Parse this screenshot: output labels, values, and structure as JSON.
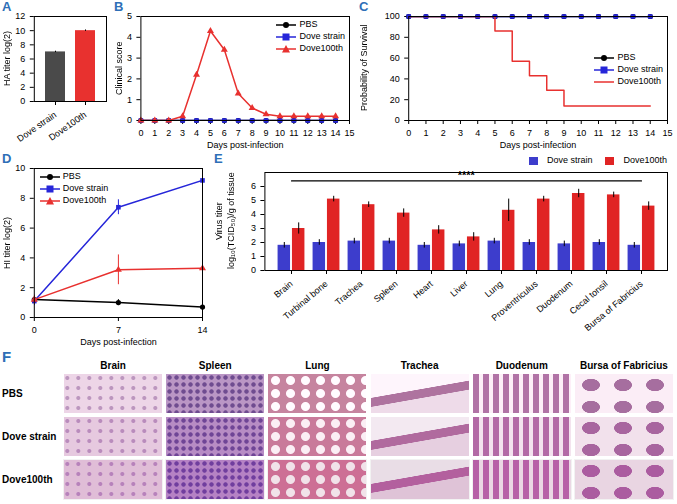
{
  "chart_data": [
    {
      "panel": "A",
      "type": "bar",
      "categories": [
        "Dove strain",
        "Dove100th"
      ],
      "values": [
        7,
        10
      ],
      "errors": [
        0.1,
        0.1
      ],
      "colors": [
        "#4a4a4a",
        "#e8312f"
      ],
      "ylabel": "HA titer log(2)",
      "ylim": [
        0,
        12
      ],
      "yticks": [
        0,
        2,
        4,
        6,
        8,
        10,
        12
      ]
    },
    {
      "panel": "B",
      "type": "line",
      "xlabel": "Days post-infection",
      "ylabel": "Clinical score",
      "x": [
        0,
        1,
        2,
        3,
        4,
        5,
        6,
        7,
        8,
        9,
        10,
        11,
        12,
        13,
        14
      ],
      "series": [
        {
          "name": "PBS",
          "color": "#000000",
          "marker": "circle",
          "values": [
            0,
            0,
            0,
            0,
            0,
            0,
            0,
            0,
            0,
            0,
            0,
            0,
            0,
            0,
            0
          ]
        },
        {
          "name": "Dove strain",
          "color": "#2626d9",
          "marker": "square",
          "values": [
            0,
            0,
            0,
            0,
            0,
            0,
            0,
            0,
            0,
            0,
            0,
            0,
            0,
            0,
            0
          ]
        },
        {
          "name": "Dove100th",
          "color": "#e8312f",
          "marker": "triangle",
          "values": [
            0,
            0,
            0,
            0.2,
            2.2,
            4.3,
            3.4,
            1.3,
            0.6,
            0.3,
            0.2,
            0.2,
            0.2,
            0.2,
            0.2
          ]
        }
      ],
      "xlim": [
        0,
        15
      ],
      "xticks": [
        0,
        1,
        2,
        3,
        4,
        5,
        6,
        7,
        8,
        9,
        10,
        11,
        12,
        13,
        14,
        15
      ],
      "ylim": [
        0,
        5
      ],
      "yticks": [
        0,
        1,
        2,
        3,
        4,
        5
      ],
      "legend": "top-right"
    },
    {
      "panel": "C",
      "type": "line",
      "line_style": "step",
      "xlabel": "Days post-infection",
      "ylabel": "Probability of Survival",
      "x": [
        0,
        1,
        2,
        3,
        4,
        5,
        6,
        7,
        8,
        9,
        10,
        11,
        12,
        13,
        14
      ],
      "series": [
        {
          "name": "PBS",
          "color": "#000000",
          "marker": "circle",
          "values": [
            100,
            100,
            100,
            100,
            100,
            100,
            100,
            100,
            100,
            100,
            100,
            100,
            100,
            100,
            100
          ]
        },
        {
          "name": "Dove strain",
          "color": "#2626d9",
          "marker": "square",
          "values": [
            100,
            100,
            100,
            100,
            100,
            100,
            100,
            100,
            100,
            100,
            100,
            100,
            100,
            100,
            100
          ]
        },
        {
          "name": "Dove100th",
          "color": "#e8312f",
          "marker": "none",
          "values": [
            100,
            100,
            100,
            100,
            100,
            86,
            57,
            43,
            29,
            14,
            14,
            14,
            14,
            14,
            14
          ]
        }
      ],
      "xlim": [
        0,
        15
      ],
      "xticks": [
        0,
        1,
        2,
        3,
        4,
        5,
        6,
        7,
        8,
        9,
        10,
        11,
        12,
        13,
        14,
        15
      ],
      "ylim": [
        0,
        100
      ],
      "yticks": [
        0,
        20,
        40,
        60,
        80,
        100
      ],
      "legend": "right"
    },
    {
      "panel": "D",
      "type": "line",
      "xlabel": "Days post-infection",
      "ylabel": "HI titer log(2)",
      "x": [
        0,
        7,
        14
      ],
      "series": [
        {
          "name": "PBS",
          "color": "#000000",
          "marker": "circle",
          "values": [
            1.2,
            1.0,
            0.7
          ],
          "errors": [
            0.2,
            0.2,
            0.2
          ]
        },
        {
          "name": "Dove strain",
          "color": "#2626d9",
          "marker": "square",
          "values": [
            1.1,
            7.4,
            9.2
          ],
          "errors": [
            0.3,
            0.5,
            0.6
          ]
        },
        {
          "name": "Dove100th",
          "color": "#e8312f",
          "marker": "triangle",
          "values": [
            1.2,
            3.2,
            3.3
          ],
          "errors": [
            0.3,
            1.0,
            0.8
          ]
        }
      ],
      "xlim": [
        0,
        14
      ],
      "xticks": [
        0,
        7,
        14
      ],
      "ylim": [
        0,
        10
      ],
      "yticks": [
        0,
        2,
        4,
        6,
        8,
        10
      ],
      "legend": "top-left"
    },
    {
      "panel": "E",
      "type": "bar",
      "ylabel": "Virus titer log₁₀(TCID₅₀)/g of tissue",
      "categories": [
        "Brain",
        "Turbinal bone",
        "Trachea",
        "Spleen",
        "Heart",
        "Liver",
        "Lung",
        "Proventriculus",
        "Duodenum",
        "Cecal tonsil",
        "Bursa of Fabricius"
      ],
      "series": [
        {
          "name": "Dove strain",
          "color": "#3d3dcc",
          "values": [
            1.8,
            2.0,
            2.1,
            2.1,
            1.8,
            1.9,
            2.1,
            2.0,
            1.9,
            2.0,
            1.8
          ],
          "errors": [
            0.2,
            0.2,
            0.2,
            0.2,
            0.2,
            0.2,
            0.2,
            0.2,
            0.2,
            0.2,
            0.2
          ]
        },
        {
          "name": "Dove100th",
          "color": "#e02424",
          "values": [
            3.0,
            5.1,
            4.7,
            4.1,
            2.9,
            2.4,
            4.3,
            5.1,
            5.5,
            5.4,
            4.6
          ],
          "errors": [
            0.4,
            0.2,
            0.2,
            0.3,
            0.3,
            0.3,
            0.8,
            0.2,
            0.3,
            0.2,
            0.3
          ]
        }
      ],
      "ylim": [
        0,
        7
      ],
      "yticks": [
        0,
        1,
        2,
        3,
        4,
        5,
        6
      ],
      "annotations": [
        {
          "text": "****",
          "y": 6.4
        }
      ],
      "legend": "top"
    }
  ],
  "panel_F": {
    "panel": "F",
    "columns": [
      "Brain",
      "Spleen",
      "Lung",
      "Trachea",
      "Duodenum",
      "Bursa of Fabricius"
    ],
    "rows": [
      "PBS",
      "Dove strain",
      "Dove100th"
    ]
  }
}
